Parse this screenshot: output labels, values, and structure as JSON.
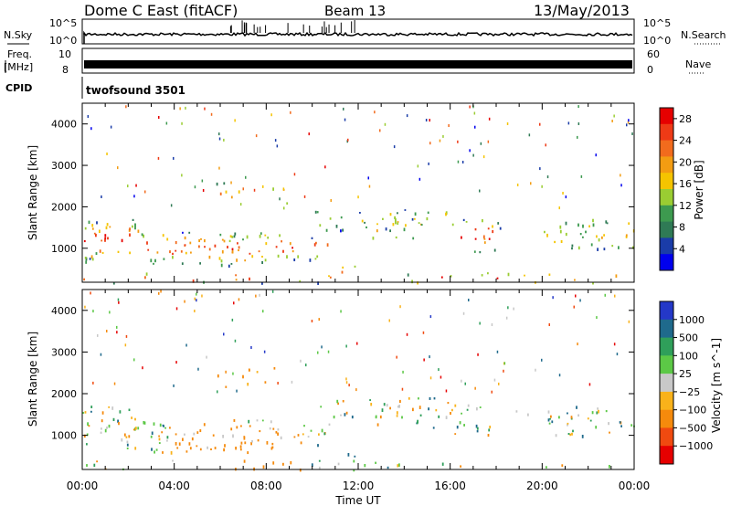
{
  "header": {
    "radar": "Dome C East (fitACF)",
    "beam": "Beam 13",
    "date": "13/May/2013"
  },
  "panels": {
    "nsky": {
      "label": "N.Sky",
      "right_label": "N.Search",
      "tick_top": "10^5",
      "tick_bottom": "10^0"
    },
    "freq": {
      "label_line1": "Freq.",
      "label_line2": "[MHz]",
      "tick_top": "10",
      "tick_bottom": "8",
      "right_label": "Nave",
      "right_tick_top": "60",
      "right_tick_bottom": "0"
    },
    "cpid": {
      "label": "CPID",
      "value": "twofsound 3501"
    }
  },
  "colors": {
    "power": [
      "#0000ee",
      "#1a3ca8",
      "#2f7a55",
      "#3d9a4f",
      "#9acd32",
      "#f5c400",
      "#f39c12",
      "#f26b1d",
      "#ee3a16",
      "#e60000"
    ],
    "velocity": [
      "#e60000",
      "#f04a10",
      "#f58a0c",
      "#f9b21a",
      "#c8c8c8",
      "#5cc846",
      "#2f9f5a",
      "#1f6a8c",
      "#2438c8"
    ]
  },
  "chart_data": [
    {
      "type": "heatmap",
      "name": "Power",
      "ylabel": "Slant Range [km]",
      "xlabel": "Time UT",
      "x_ticks": [
        "00:00",
        "04:00",
        "08:00",
        "12:00",
        "16:00",
        "20:00",
        "00:00"
      ],
      "y_ticks": [
        "1000",
        "2000",
        "3000",
        "4000"
      ],
      "ylim": [
        180,
        4500
      ],
      "xlim_hours": [
        0,
        24
      ],
      "colorbar_label": "Power [dB]",
      "colorbar_ticks": [
        "4",
        "8",
        "12",
        "16",
        "20",
        "24",
        "28"
      ],
      "colorbar_range": [
        0,
        30
      ]
    },
    {
      "type": "heatmap",
      "name": "Velocity",
      "ylabel": "Slant Range [km]",
      "xlabel": "Time UT",
      "x_ticks": [
        "00:00",
        "04:00",
        "08:00",
        "12:00",
        "16:00",
        "20:00",
        "00:00"
      ],
      "y_ticks": [
        "1000",
        "2000",
        "3000",
        "4000"
      ],
      "ylim": [
        180,
        4500
      ],
      "xlim_hours": [
        0,
        24
      ],
      "colorbar_label": "Velocity [m s^-1]",
      "colorbar_ticks": [
        "1000",
        "500",
        "100",
        "25",
        "−25",
        "−100",
        "−500",
        "−1000"
      ]
    }
  ]
}
